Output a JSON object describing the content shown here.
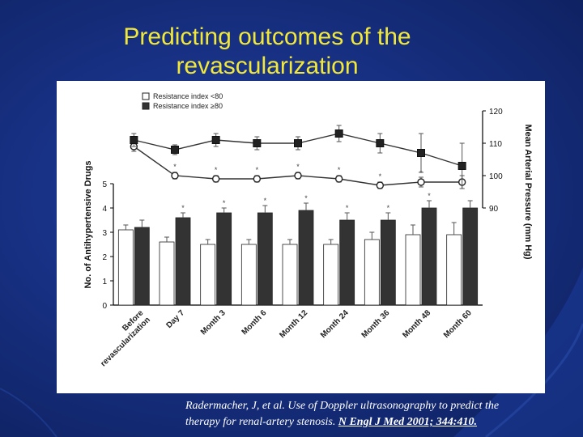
{
  "slide": {
    "title_line1": "Predicting  outcomes of the",
    "title_line2": "revascularization",
    "citation_line1": "Radermacher, J, et al. Use of Doppler ultrasonography to predict the",
    "citation_line2_prefix": "therapy for renal-artery stenosis. ",
    "citation_ref": "N Engl J Med 2001; 344:410."
  },
  "colors": {
    "background": "#173082",
    "title": "#f2e83a",
    "citation": "#ffffff",
    "bar_low": "#ffffff",
    "bar_high": "#333333"
  },
  "chart_data": {
    "type": "bar",
    "categories": [
      "Before revascularization",
      "Day 7",
      "Month 3",
      "Month 6",
      "Month 12",
      "Month 24",
      "Month 36",
      "Month 48",
      "Month 60"
    ],
    "legend": [
      "Resistance index <80",
      "Resistance index ≥80"
    ],
    "legend_position": "top-left",
    "ylabel_left": "No. of Antihypertensive Drugs",
    "ylabel_right": "Mean Arterial Pressure (mm Hg)",
    "left_ticks": [
      "0",
      "1",
      "2",
      "3",
      "4",
      "5"
    ],
    "right_ticks": [
      "90",
      "100",
      "110",
      "120"
    ],
    "left_ylim": [
      0,
      5
    ],
    "right_ylim": [
      90,
      120
    ],
    "series": [
      {
        "name": "Resistance index <80 (drugs)",
        "kind": "bar",
        "axis": "left",
        "values": [
          3.1,
          2.6,
          2.5,
          2.5,
          2.5,
          2.5,
          2.7,
          2.9,
          2.9
        ],
        "errors": [
          0.2,
          0.2,
          0.2,
          0.2,
          0.2,
          0.2,
          0.3,
          0.4,
          0.5
        ]
      },
      {
        "name": "Resistance index ≥80 (drugs)",
        "kind": "bar",
        "axis": "left",
        "values": [
          3.2,
          3.6,
          3.8,
          3.8,
          3.9,
          3.5,
          3.5,
          4.0,
          4.0
        ],
        "errors": [
          0.3,
          0.2,
          0.2,
          0.3,
          0.3,
          0.3,
          0.3,
          0.3,
          0.3
        ]
      },
      {
        "name": "Resistance index <80 (MAP)",
        "kind": "line",
        "axis": "right",
        "values": [
          109,
          100,
          99,
          99,
          100,
          99,
          97,
          98,
          98
        ],
        "errors": [
          1.5,
          1.0,
          1.0,
          1.0,
          1.0,
          1.0,
          1.0,
          1.5,
          2.0
        ]
      },
      {
        "name": "Resistance index ≥80 (MAP)",
        "kind": "line",
        "axis": "right",
        "values": [
          111,
          108,
          111,
          110,
          110,
          113,
          110,
          107,
          103
        ],
        "errors": [
          2.0,
          1.5,
          2.0,
          2.0,
          2.0,
          2.5,
          3.0,
          6.0,
          7.0
        ]
      }
    ],
    "bar_significance_markers": [
      "",
      "*",
      "*",
      "*",
      "*",
      "*",
      "*",
      "*",
      ""
    ],
    "line_significance_markers": [
      "",
      "*",
      "*",
      "*",
      "*",
      "*",
      "*",
      "*",
      ""
    ]
  }
}
